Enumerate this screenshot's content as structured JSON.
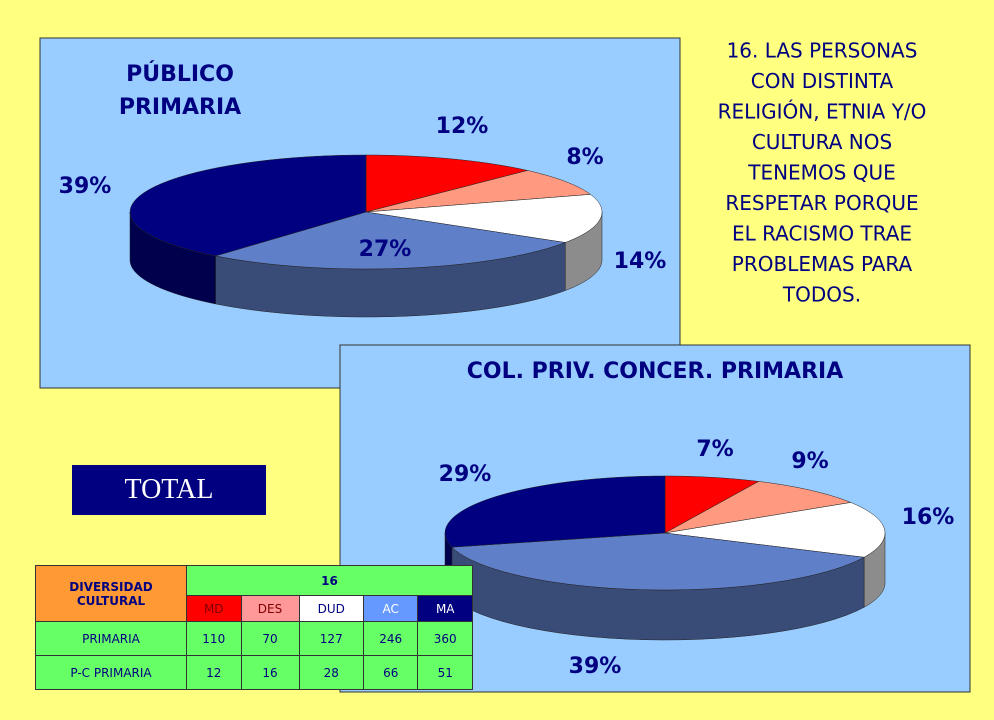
{
  "chart_data": [
    {
      "type": "pie",
      "title": [
        "PÚBLICO",
        "PRIMARIA"
      ],
      "values": [
        12,
        8,
        14,
        27,
        39
      ],
      "value_labels": [
        "12%",
        "8%",
        "14%",
        "27%",
        "39%"
      ],
      "colors": [
        "#ff0000",
        "#ff9980",
        "#ffffff",
        "#5f7fc8",
        "#000080"
      ]
    },
    {
      "type": "pie",
      "title": [
        "COL. PRIV. CONCER. PRIMARIA"
      ],
      "values": [
        7,
        9,
        16,
        39,
        29
      ],
      "value_labels": [
        "7%",
        "9%",
        "16%",
        "39%",
        "29%"
      ],
      "colors": [
        "#ff0000",
        "#ff9980",
        "#ffffff",
        "#5f7fc8",
        "#000080"
      ]
    }
  ],
  "question": [
    "16. LAS PERSONAS",
    "CON DISTINTA",
    "RELIGIÓN, ETNIA Y/O",
    "CULTURA NOS",
    "TENEMOS QUE",
    "RESPETAR PORQUE",
    "EL RACISMO TRAE",
    "PROBLEMAS PARA",
    "TODOS."
  ],
  "total_label": "TOTAL",
  "table": {
    "corner": "DIVERSIDAD CULTURAL",
    "group": "16",
    "columns": [
      "MD",
      "DES",
      "DUD",
      "AC",
      "MA"
    ],
    "rows": [
      [
        "PRIMARIA",
        "110",
        "70",
        "127",
        "246",
        "360"
      ],
      [
        "P-C PRIMARIA",
        "12",
        "16",
        "28",
        "66",
        "51"
      ]
    ]
  }
}
